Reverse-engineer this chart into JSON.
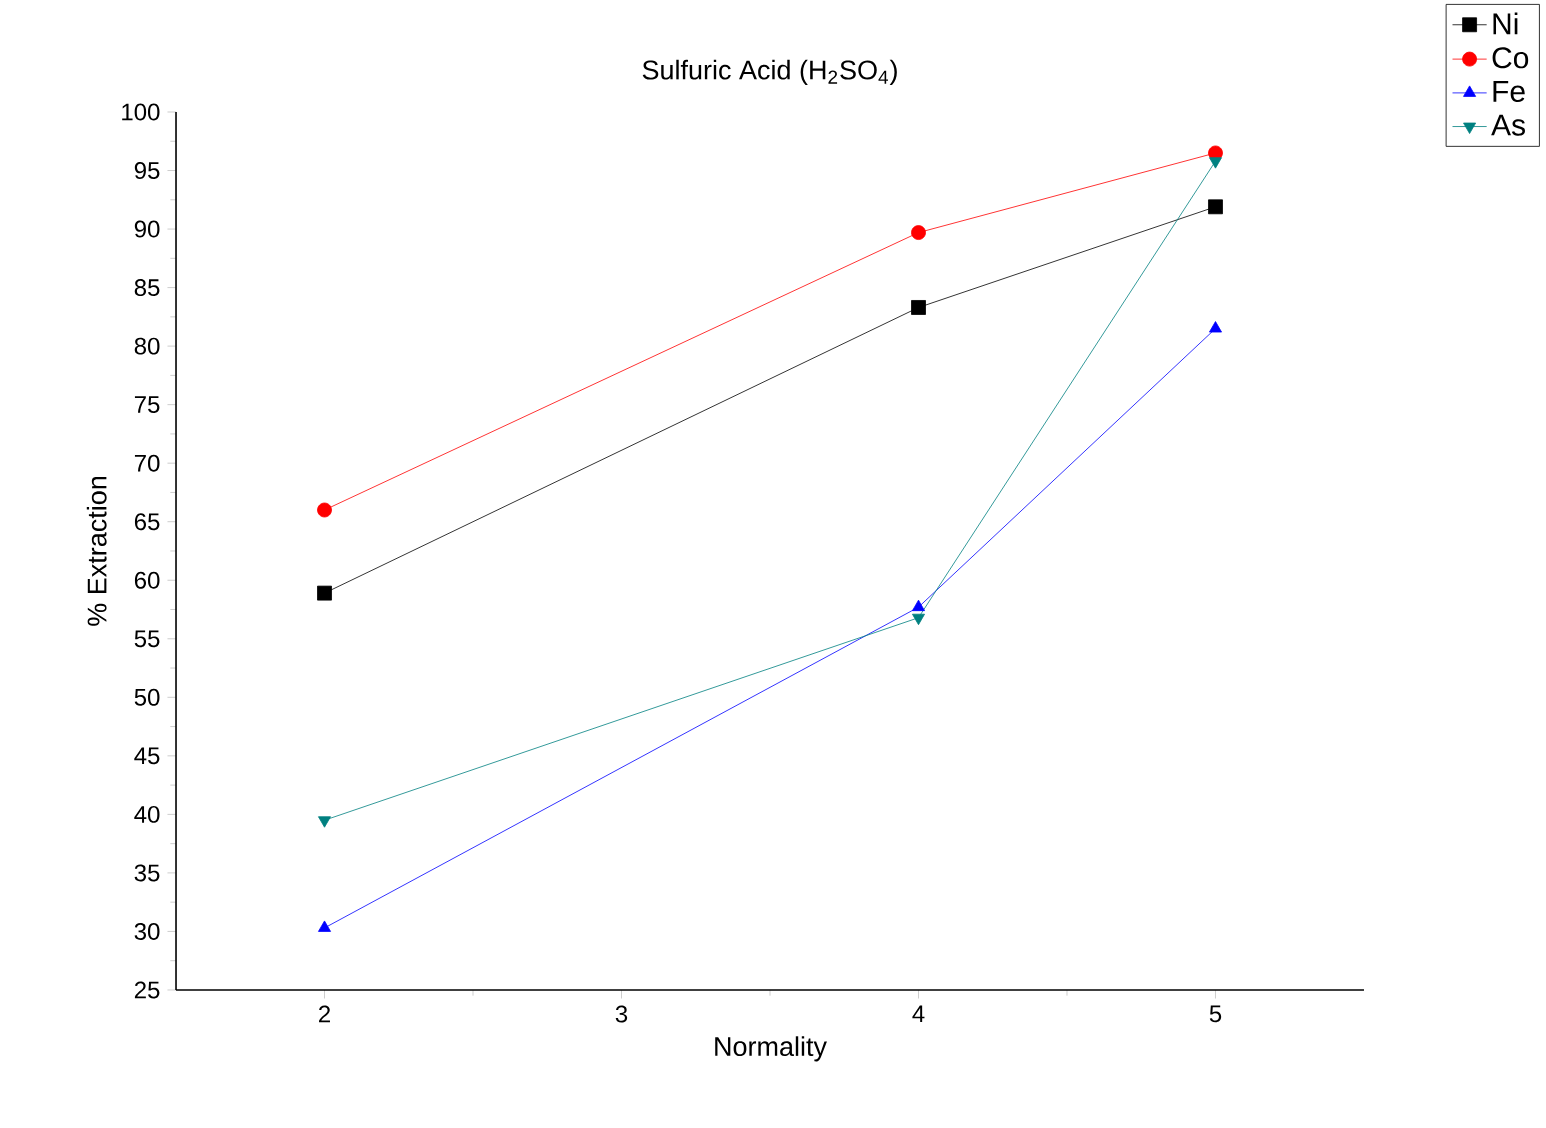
{
  "chart_data": {
    "type": "line",
    "title": "Sulfuric Acid (H$_{2}$SO$_{4}$)",
    "xlabel": "Normality",
    "ylabel": "% Extraction",
    "x": [
      2,
      4,
      5
    ],
    "series": [
      {
        "name": "Ni",
        "color": "#000000",
        "marker": "square",
        "values": [
          58.9,
          83.3,
          91.9
        ]
      },
      {
        "name": "Co",
        "color": "#ff0000",
        "marker": "circle",
        "values": [
          66,
          89.7,
          96.5
        ]
      },
      {
        "name": "Fe",
        "color": "#0000ff",
        "marker": "triangle",
        "values": [
          30.3,
          57.7,
          81.5
        ]
      },
      {
        "name": "As",
        "color": "#008080",
        "marker": "triangle-down",
        "values": [
          39.5,
          56.8,
          95.8
        ]
      }
    ],
    "xlim": [
      1.5,
      5.5
    ],
    "xticks": [
      2,
      3,
      4,
      5
    ],
    "ylim": [
      25,
      100
    ],
    "yticks": [
      25,
      30,
      35,
      40,
      45,
      50,
      55,
      60,
      65,
      70,
      75,
      80,
      85,
      90,
      95,
      100
    ],
    "legend": "top right",
    "grid": false,
    "line_style": "solid"
  }
}
